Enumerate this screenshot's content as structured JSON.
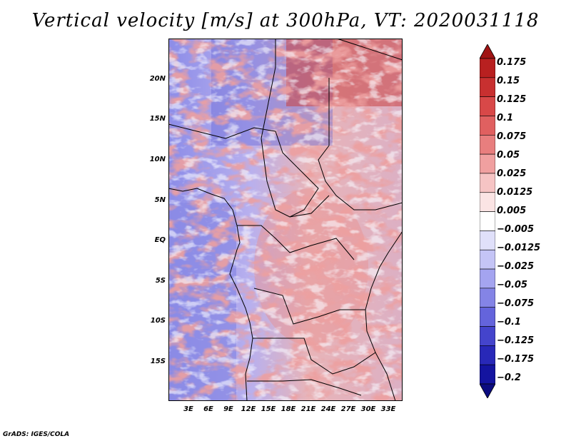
{
  "title": "Vertical velocity [m/s] at 300hPa, VT: 2020031118",
  "credit": "GrADS: IGES/COLA",
  "map": {
    "lon_range": [
      0,
      35
    ],
    "lat_range": [
      -20,
      25
    ],
    "lat_labels": [
      "20N",
      "15N",
      "10N",
      "5N",
      "EQ",
      "5S",
      "10S",
      "15S"
    ],
    "lat_values": [
      20,
      15,
      10,
      5,
      0,
      -5,
      -10,
      -15
    ],
    "lon_labels": [
      "3E",
      "6E",
      "9E",
      "12E",
      "15E",
      "18E",
      "21E",
      "24E",
      "27E",
      "30E",
      "33E"
    ],
    "lon_values": [
      3,
      6,
      9,
      12,
      15,
      18,
      21,
      24,
      27,
      30,
      33
    ]
  },
  "colorbar": {
    "labels": [
      "0.175",
      "0.15",
      "0.125",
      "0.1",
      "0.075",
      "0.05",
      "0.025",
      "0.0125",
      "0.005",
      "−0.005",
      "−0.0125",
      "−0.025",
      "−0.05",
      "−0.075",
      "−0.1",
      "−0.125",
      "−0.175",
      "−0.2"
    ],
    "colors": [
      "#a01414",
      "#b82020",
      "#c83030",
      "#d84848",
      "#e06060",
      "#e87e7e",
      "#f0a0a0",
      "#f6c4c4",
      "#fbe4e4",
      "#ffffff",
      "#e0e0fa",
      "#c4c4f6",
      "#a4a4f0",
      "#8484e6",
      "#6464dc",
      "#4444cc",
      "#2828b8",
      "#1414a0",
      "#0c0c80"
    ]
  }
}
